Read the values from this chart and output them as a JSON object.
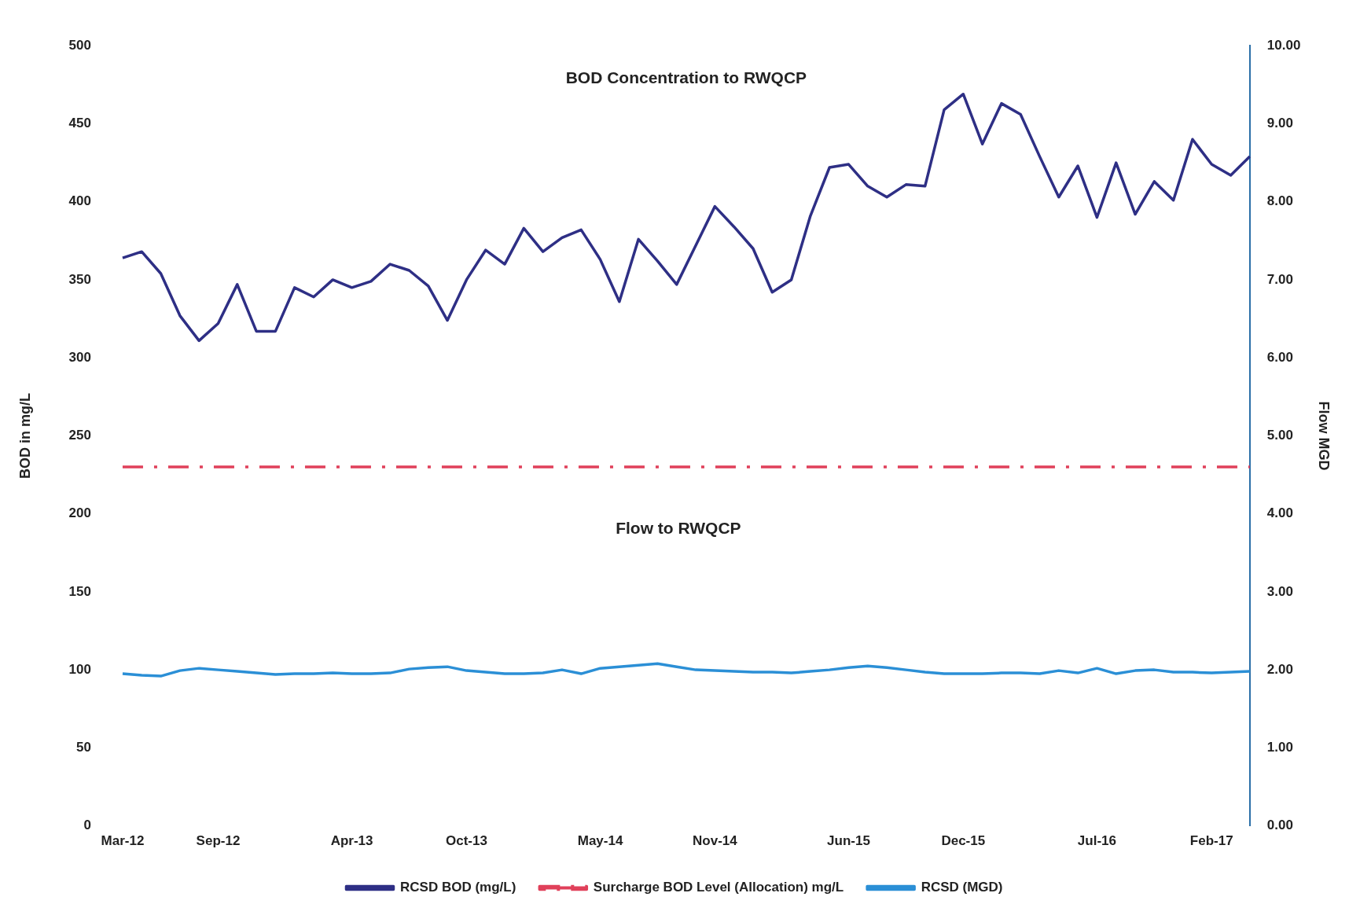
{
  "chart_data": {
    "type": "line",
    "title": "BOD Concentration to RWQCP",
    "annotations": [
      "Flow to RWQCP"
    ],
    "ylabel": "BOD in mg/L",
    "y2label": "Flow MGD",
    "categories": [
      "Mar-12",
      null,
      null,
      null,
      null,
      "Sep-12",
      null,
      null,
      null,
      null,
      null,
      null,
      "Apr-13",
      null,
      null,
      null,
      null,
      null,
      "Oct-13",
      null,
      null,
      null,
      null,
      null,
      null,
      "May-14",
      null,
      null,
      null,
      null,
      null,
      "Nov-14",
      null,
      null,
      null,
      null,
      null,
      null,
      "Jun-15",
      null,
      null,
      null,
      null,
      null,
      "Dec-15",
      null,
      null,
      null,
      null,
      null,
      null,
      "Jul-16",
      null,
      null,
      null,
      null,
      null,
      "Feb-17",
      null,
      null
    ],
    "series": [
      {
        "name": "RCSD BOD (mg/L)",
        "color": "#2e2f85",
        "line_style": "solid",
        "values": [
          364,
          368,
          354,
          327,
          311,
          322,
          347,
          317,
          317,
          345,
          339,
          350,
          345,
          349,
          360,
          356,
          346,
          324,
          350,
          369,
          360,
          383,
          368,
          377,
          382,
          363,
          336,
          376,
          362,
          347,
          372,
          397,
          384,
          370,
          342,
          350,
          391,
          422,
          424,
          410,
          403,
          411,
          410,
          459,
          469,
          437,
          463,
          456,
          429,
          403,
          423,
          390,
          425,
          392,
          413,
          401,
          440,
          424,
          417,
          429
        ]
      },
      {
        "name": "Surcharge BOD Level (Allocation) mg/L",
        "color": "#e0405a",
        "line_style": "dashed",
        "values": [
          230,
          230,
          230,
          230,
          230,
          230,
          230,
          230,
          230,
          230,
          230,
          230,
          230,
          230,
          230,
          230,
          230,
          230,
          230,
          230,
          230,
          230,
          230,
          230,
          230,
          230,
          230,
          230,
          230,
          230,
          230,
          230,
          230,
          230,
          230,
          230,
          230,
          230,
          230,
          230,
          230,
          230,
          230,
          230,
          230,
          230,
          230,
          230,
          230,
          230,
          230,
          230,
          230,
          230,
          230,
          230,
          230,
          230,
          230,
          230
        ]
      },
      {
        "name": "RCSD (MGD)",
        "color": "#2b8fd6",
        "line_style": "solid",
        "axis": "y2",
        "values": [
          1.95,
          1.93,
          1.92,
          1.99,
          2.02,
          2.0,
          1.98,
          1.96,
          1.94,
          1.95,
          1.95,
          1.96,
          1.95,
          1.95,
          1.96,
          2.01,
          2.03,
          2.04,
          1.99,
          1.97,
          1.95,
          1.95,
          1.96,
          2.0,
          1.95,
          2.02,
          2.04,
          2.06,
          2.08,
          2.04,
          2.0,
          1.99,
          1.98,
          1.97,
          1.97,
          1.96,
          1.98,
          2.0,
          2.03,
          2.05,
          2.03,
          2.0,
          1.97,
          1.95,
          1.95,
          1.95,
          1.96,
          1.96,
          1.95,
          1.99,
          1.96,
          2.02,
          1.95,
          1.99,
          2.0,
          1.97,
          1.97,
          1.96,
          1.97,
          1.98
        ]
      }
    ],
    "ylim": [
      0,
      500
    ],
    "yticks": [
      0,
      50,
      100,
      150,
      200,
      250,
      300,
      350,
      400,
      450,
      500
    ],
    "y2lim": [
      0,
      10
    ],
    "y2ticks": [
      {
        "value": 0,
        "label": "0.00"
      },
      {
        "value": 1,
        "label": "1.00"
      },
      {
        "value": 2,
        "label": "2.00"
      },
      {
        "value": 3,
        "label": "3.00"
      },
      {
        "value": 4,
        "label": "4.00"
      },
      {
        "value": 5,
        "label": "5.00"
      },
      {
        "value": 6,
        "label": "6.00"
      },
      {
        "value": 7,
        "label": "7.00"
      },
      {
        "value": 8,
        "label": "8.00"
      },
      {
        "value": 9,
        "label": "9.00"
      },
      {
        "value": 10,
        "label": "10.00"
      }
    ],
    "grid": false,
    "legend": "bottom",
    "marker": "none"
  }
}
